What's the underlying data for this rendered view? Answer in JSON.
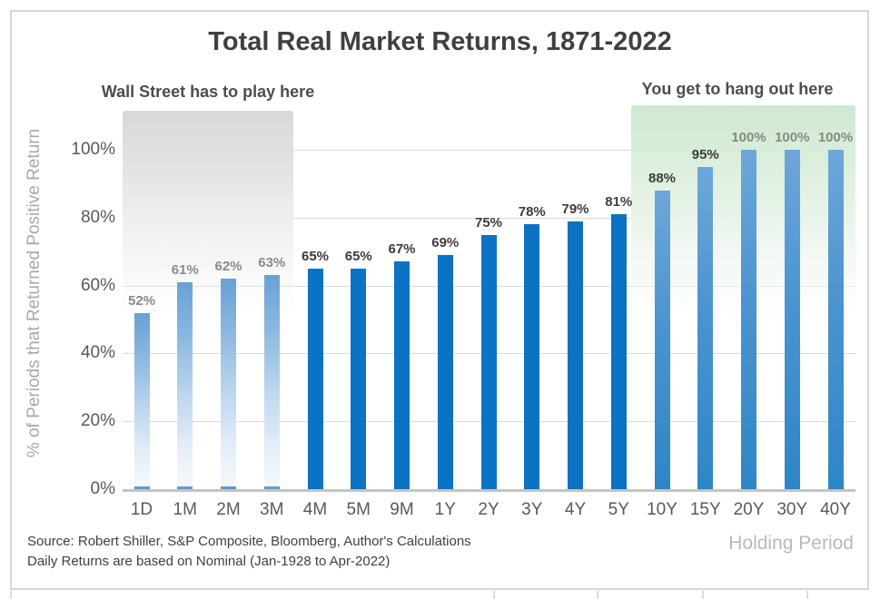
{
  "title": "Total Real Market Returns, 1871-2022",
  "annotations": {
    "left": "Wall Street has to play here",
    "right": "You get to hang out here"
  },
  "chart_data": {
    "type": "bar",
    "title": "Total Real Market Returns, 1871-2022",
    "categories": [
      "1D",
      "1M",
      "2M",
      "3M",
      "4M",
      "5M",
      "9M",
      "1Y",
      "2Y",
      "3Y",
      "4Y",
      "5Y",
      "10Y",
      "15Y",
      "20Y",
      "30Y",
      "40Y"
    ],
    "values": [
      52,
      61,
      62,
      63,
      65,
      65,
      67,
      69,
      75,
      78,
      79,
      81,
      88,
      95,
      100,
      100,
      100
    ],
    "data_labels": [
      "52%",
      "61%",
      "62%",
      "63%",
      "65%",
      "65%",
      "67%",
      "69%",
      "75%",
      "78%",
      "79%",
      "81%",
      "88%",
      "95%",
      "100%",
      "100%",
      "100%"
    ],
    "xlabel": "Holding Period",
    "ylabel": "% of Periods that Returned Positive Return",
    "y_ticks": [
      "0%",
      "20%",
      "40%",
      "60%",
      "80%",
      "100%"
    ],
    "y_tick_values": [
      0,
      20,
      40,
      60,
      80,
      100
    ],
    "ylim": [
      0,
      112
    ],
    "grid": true,
    "legend": false,
    "zones": {
      "wall_street": {
        "label": "Wall Street has to play here",
        "categories": [
          "1D",
          "1M",
          "2M",
          "3M"
        ]
      },
      "hang_out": {
        "label": "You get to hang out here",
        "categories": [
          "10Y",
          "15Y",
          "20Y",
          "30Y",
          "40Y"
        ]
      }
    },
    "colors": {
      "solid_bar": "#0b72c4",
      "faded_bar_top": "#68a1d5",
      "gradient_bar_top": "#6ea7d9",
      "gradient_bar_bottom": "#2e86c6",
      "gray_zone": "#d8d8d8",
      "green_zone": "#cfe8d1",
      "gridline": "#dadada",
      "muted_label": "#8b8b8b",
      "dark_label": "#3c3c3c",
      "hundred_label": "#848c84"
    }
  },
  "footer": {
    "source_line1": "Source: Robert Shiller, S&P Composite, Bloomberg, Author's Calculations",
    "source_line2": "Daily Returns are based on Nominal (Jan-1928 to Apr-2022)",
    "x_axis_caption": "Holding Period"
  }
}
